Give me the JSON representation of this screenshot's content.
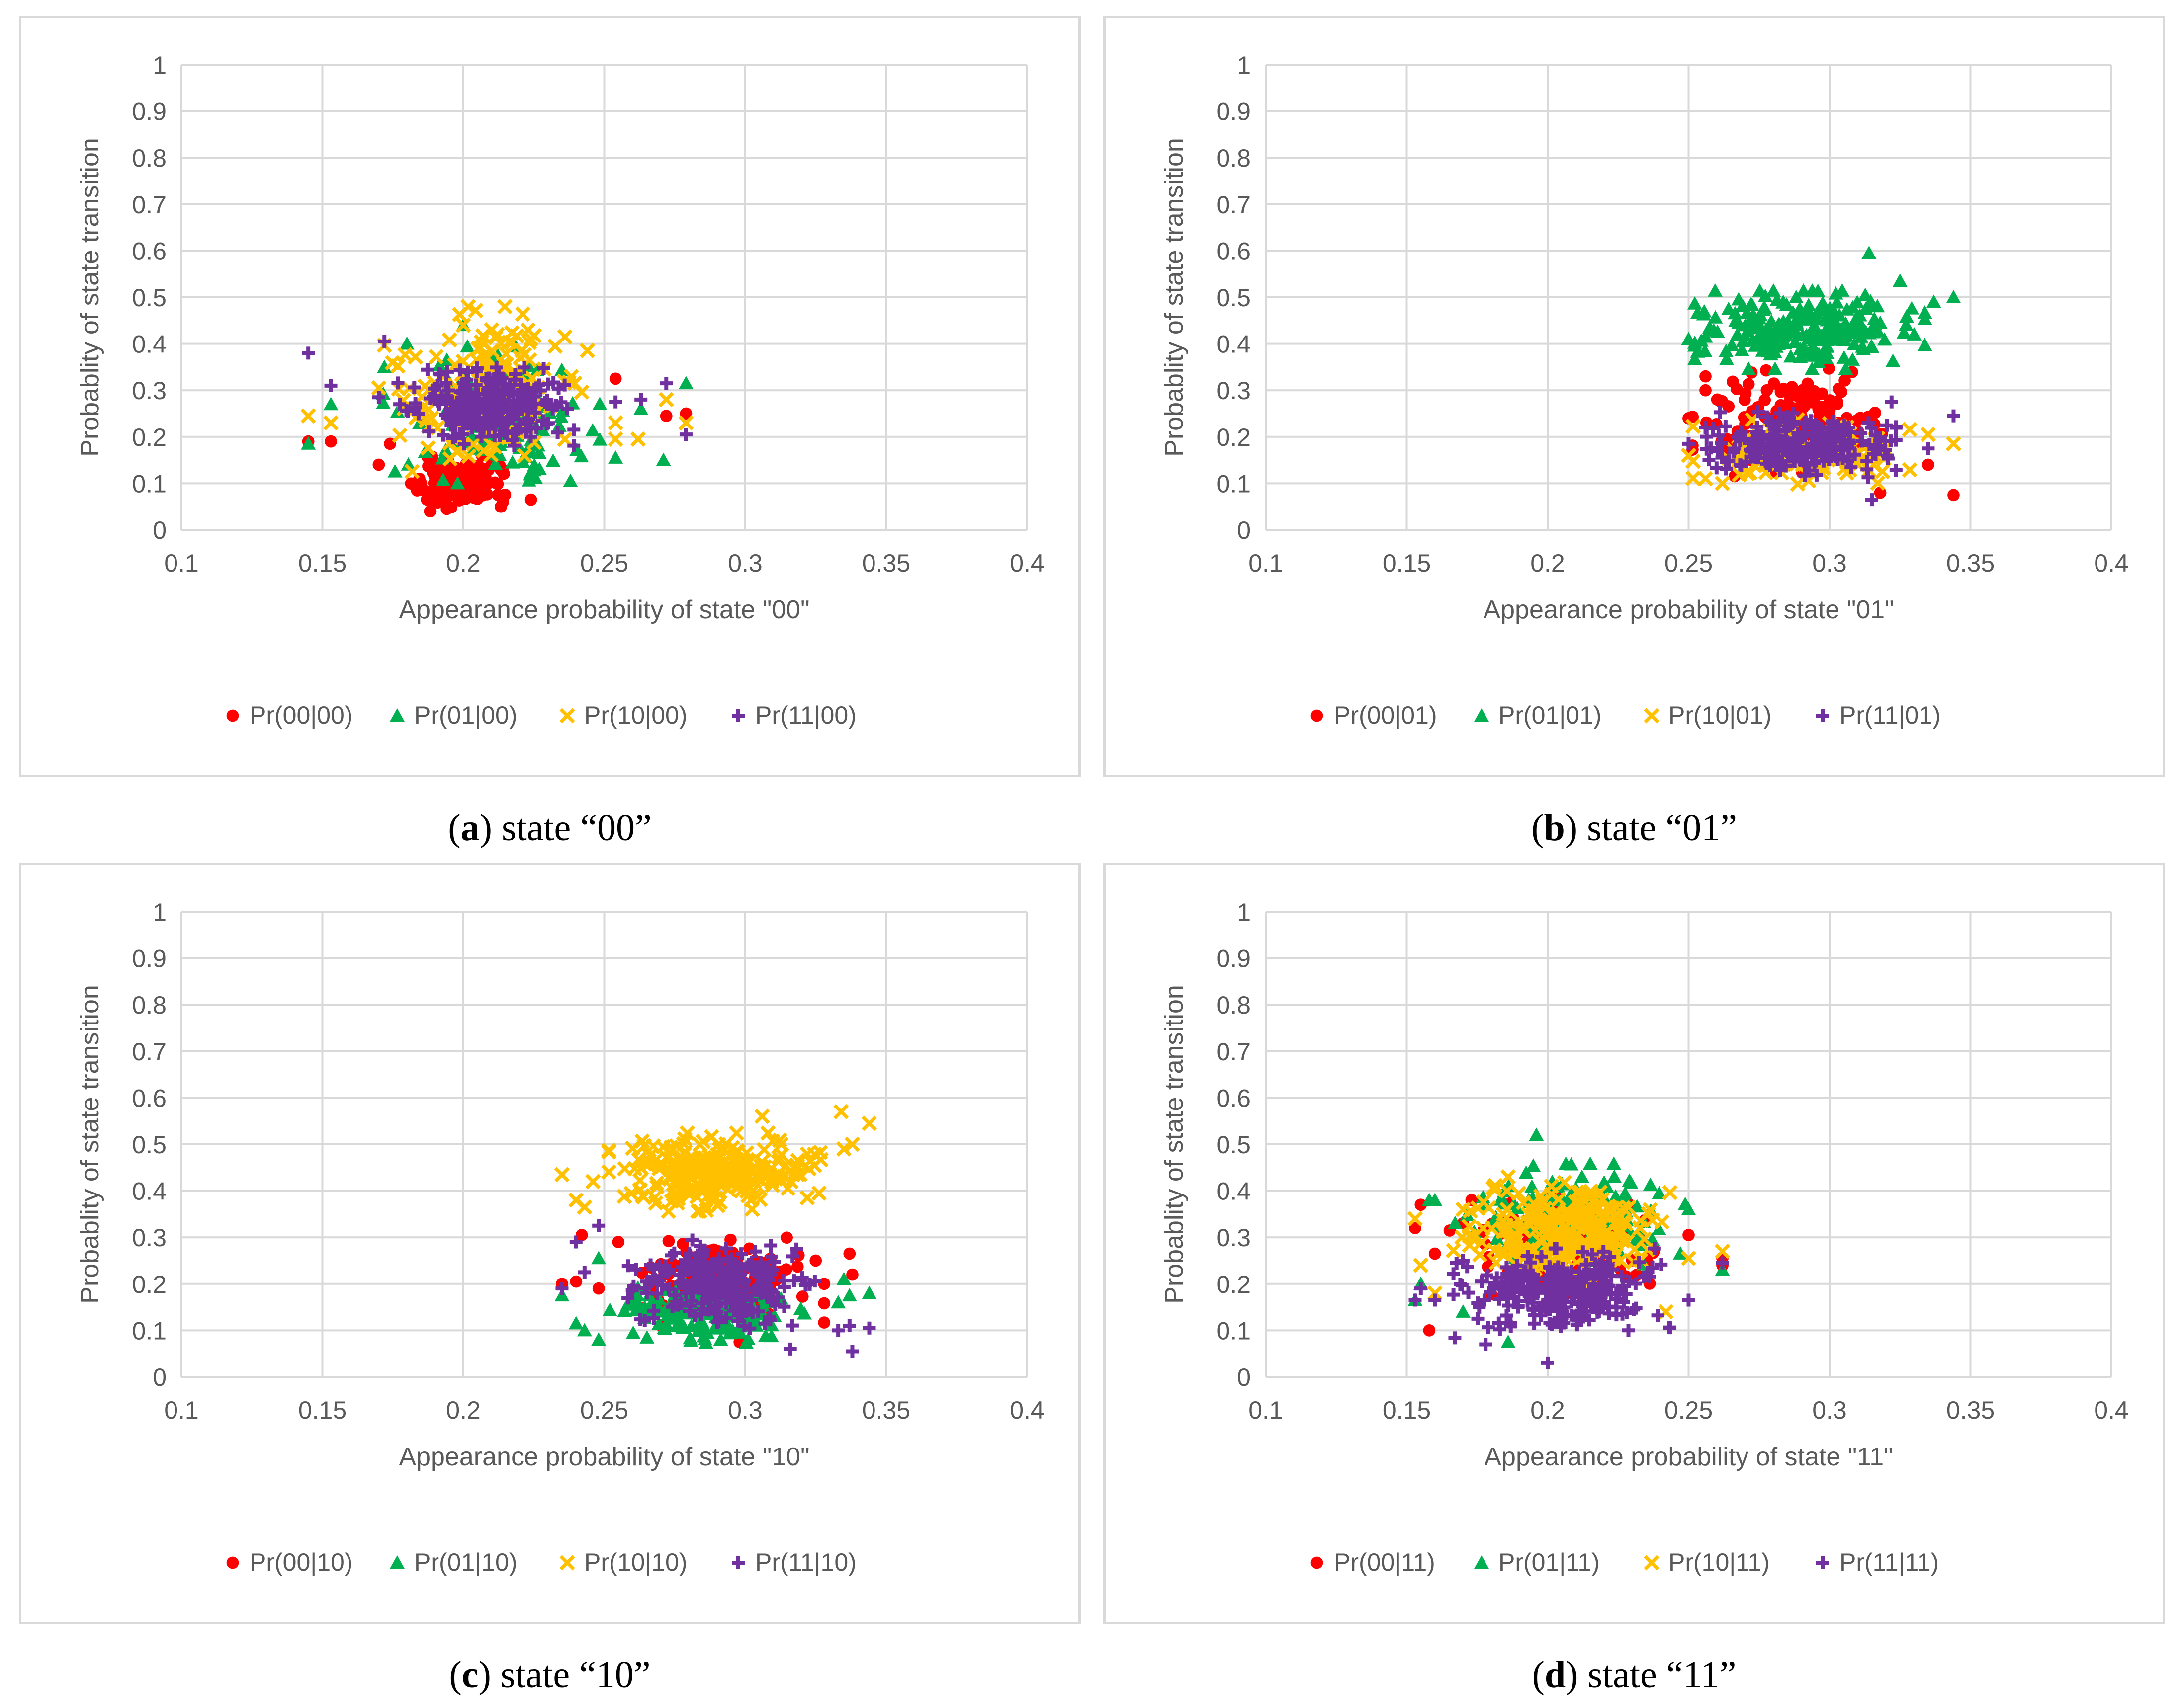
{
  "chart_data": [
    {
      "type": "scatter",
      "caption": {
        "letter": "a",
        "text": "state “00”"
      },
      "xlabel": "Appearance probability of state \"00\"",
      "ylabel": "Probablity of state transition",
      "xlim": [
        0.1,
        0.4
      ],
      "ylim": [
        0,
        1
      ],
      "xticks": [
        "0.1",
        "0.15",
        "0.2",
        "0.25",
        "0.3",
        "0.35",
        "0.4"
      ],
      "yticks": [
        "0",
        "0.1",
        "0.2",
        "0.3",
        "0.4",
        "0.5",
        "0.6",
        "0.7",
        "0.8",
        "0.9",
        "1"
      ],
      "grid": true,
      "legend": "bottom",
      "series": [
        {
          "name": "Pr(00|00)",
          "marker": "circle",
          "color": "#ff0000",
          "cluster": {
            "cx": 0.198,
            "cy": 0.1,
            "sx": 0.007,
            "sy": 0.025,
            "n": 120,
            "seed": 11
          },
          "outliers": [
            [
              0.145,
              0.19
            ],
            [
              0.153,
              0.19
            ],
            [
              0.17,
              0.14
            ],
            [
              0.254,
              0.325
            ],
            [
              0.272,
              0.245
            ],
            [
              0.279,
              0.25
            ],
            [
              0.224,
              0.065
            ],
            [
              0.214,
              0.06
            ],
            [
              0.185,
              0.1
            ],
            [
              0.174,
              0.185
            ]
          ]
        },
        {
          "name": "Pr(01|00)",
          "marker": "triangle",
          "color": "#00b050",
          "cluster": {
            "cx": 0.21,
            "cy": 0.25,
            "sx": 0.016,
            "sy": 0.06,
            "n": 140,
            "seed": 22
          },
          "outliers": [
            [
              0.145,
              0.185
            ],
            [
              0.153,
              0.27
            ],
            [
              0.172,
              0.35
            ],
            [
              0.18,
              0.4
            ],
            [
              0.254,
              0.155
            ],
            [
              0.263,
              0.26
            ],
            [
              0.271,
              0.15
            ],
            [
              0.279,
              0.315
            ],
            [
              0.198,
              0.1
            ],
            [
              0.238,
              0.105
            ],
            [
              0.2,
              0.44
            ]
          ]
        },
        {
          "name": "Pr(10|00)",
          "marker": "x",
          "color": "#ffc000",
          "cluster": {
            "cx": 0.208,
            "cy": 0.3,
            "sx": 0.015,
            "sy": 0.075,
            "n": 180,
            "seed": 33
          },
          "outliers": [
            [
              0.145,
              0.245
            ],
            [
              0.153,
              0.23
            ],
            [
              0.17,
              0.305
            ],
            [
              0.236,
              0.415
            ],
            [
              0.254,
              0.195
            ],
            [
              0.254,
              0.23
            ],
            [
              0.262,
              0.195
            ],
            [
              0.272,
              0.28
            ],
            [
              0.279,
              0.23
            ],
            [
              0.2,
              0.44
            ],
            [
              0.21,
              0.43
            ]
          ]
        },
        {
          "name": "Pr(11|00)",
          "marker": "plus",
          "color": "#7030a0",
          "cluster": {
            "cx": 0.208,
            "cy": 0.265,
            "sx": 0.013,
            "sy": 0.035,
            "n": 240,
            "seed": 44
          },
          "outliers": [
            [
              0.145,
              0.38
            ],
            [
              0.153,
              0.31
            ],
            [
              0.172,
              0.405
            ],
            [
              0.254,
              0.275
            ],
            [
              0.263,
              0.28
            ],
            [
              0.272,
              0.315
            ],
            [
              0.279,
              0.205
            ],
            [
              0.17,
              0.285
            ]
          ]
        }
      ]
    },
    {
      "type": "scatter",
      "caption": {
        "letter": "b",
        "text": "state “01”"
      },
      "xlabel": "Appearance probability of state \"01\"",
      "ylabel": "Probablity of state transition",
      "xlim": [
        0.1,
        0.4
      ],
      "ylim": [
        0,
        1
      ],
      "xticks": [
        "0.1",
        "0.15",
        "0.2",
        "0.25",
        "0.3",
        "0.35",
        "0.4"
      ],
      "yticks": [
        "0",
        "0.1",
        "0.2",
        "0.3",
        "0.4",
        "0.5",
        "0.6",
        "0.7",
        "0.8",
        "0.9",
        "1"
      ],
      "grid": true,
      "legend": "bottom",
      "series": [
        {
          "name": "Pr(00|01)",
          "marker": "circle",
          "color": "#ff0000",
          "cluster": {
            "cx": 0.285,
            "cy": 0.235,
            "sx": 0.014,
            "sy": 0.05,
            "n": 160,
            "seed": 55
          },
          "outliers": [
            [
              0.25,
              0.24
            ],
            [
              0.256,
              0.33
            ],
            [
              0.256,
              0.3
            ],
            [
              0.344,
              0.075
            ],
            [
              0.335,
              0.14
            ],
            [
              0.318,
              0.08
            ]
          ]
        },
        {
          "name": "Pr(01|01)",
          "marker": "triangle",
          "color": "#00b050",
          "cluster": {
            "cx": 0.293,
            "cy": 0.43,
            "sx": 0.017,
            "sy": 0.035,
            "n": 240,
            "seed": 66
          },
          "outliers": [
            [
              0.25,
              0.41
            ],
            [
              0.256,
              0.415
            ],
            [
              0.344,
              0.5
            ],
            [
              0.337,
              0.49
            ],
            [
              0.33,
              0.42
            ],
            [
              0.314,
              0.595
            ],
            [
              0.325,
              0.535
            ]
          ]
        },
        {
          "name": "Pr(10|01)",
          "marker": "x",
          "color": "#ffc000",
          "cluster": {
            "cx": 0.29,
            "cy": 0.165,
            "sx": 0.016,
            "sy": 0.03,
            "n": 150,
            "seed": 77
          },
          "outliers": [
            [
              0.25,
              0.16
            ],
            [
              0.256,
              0.11
            ],
            [
              0.344,
              0.185
            ],
            [
              0.335,
              0.205
            ],
            [
              0.262,
              0.1
            ]
          ]
        },
        {
          "name": "Pr(11|01)",
          "marker": "plus",
          "color": "#7030a0",
          "cluster": {
            "cx": 0.29,
            "cy": 0.185,
            "sx": 0.014,
            "sy": 0.03,
            "n": 260,
            "seed": 88
          },
          "outliers": [
            [
              0.25,
              0.185
            ],
            [
              0.256,
              0.22
            ],
            [
              0.344,
              0.245
            ],
            [
              0.335,
              0.175
            ],
            [
              0.315,
              0.065
            ],
            [
              0.322,
              0.275
            ]
          ]
        }
      ]
    },
    {
      "type": "scatter",
      "caption": {
        "letter": "c",
        "text": "state “10”"
      },
      "xlabel": "Appearance probability of state \"10\"",
      "ylabel": "Probablity of state transition",
      "xlim": [
        0.1,
        0.4
      ],
      "ylim": [
        0,
        1
      ],
      "xticks": [
        "0.1",
        "0.15",
        "0.2",
        "0.25",
        "0.3",
        "0.35",
        "0.4"
      ],
      "yticks": [
        "0",
        "0.1",
        "0.2",
        "0.3",
        "0.4",
        "0.5",
        "0.6",
        "0.7",
        "0.8",
        "0.9",
        "1"
      ],
      "grid": true,
      "legend": "bottom",
      "series": [
        {
          "name": "Pr(00|10)",
          "marker": "circle",
          "color": "#ff0000",
          "cluster": {
            "cx": 0.292,
            "cy": 0.205,
            "sx": 0.015,
            "sy": 0.04,
            "n": 140,
            "seed": 99
          },
          "outliers": [
            [
              0.235,
              0.2
            ],
            [
              0.24,
              0.205
            ],
            [
              0.242,
              0.305
            ],
            [
              0.248,
              0.19
            ],
            [
              0.337,
              0.265
            ],
            [
              0.338,
              0.22
            ],
            [
              0.325,
              0.25
            ],
            [
              0.298,
              0.075
            ],
            [
              0.255,
              0.29
            ]
          ]
        },
        {
          "name": "Pr(01|10)",
          "marker": "triangle",
          "color": "#00b050",
          "cluster": {
            "cx": 0.285,
            "cy": 0.145,
            "sx": 0.015,
            "sy": 0.03,
            "n": 170,
            "seed": 111
          },
          "outliers": [
            [
              0.235,
              0.175
            ],
            [
              0.24,
              0.115
            ],
            [
              0.243,
              0.1
            ],
            [
              0.248,
              0.08
            ],
            [
              0.248,
              0.255
            ],
            [
              0.337,
              0.175
            ],
            [
              0.344,
              0.18
            ],
            [
              0.333,
              0.16
            ],
            [
              0.335,
              0.21
            ]
          ]
        },
        {
          "name": "Pr(10|10)",
          "marker": "x",
          "color": "#ffc000",
          "cluster": {
            "cx": 0.29,
            "cy": 0.44,
            "sx": 0.016,
            "sy": 0.035,
            "n": 260,
            "seed": 122
          },
          "outliers": [
            [
              0.235,
              0.435
            ],
            [
              0.24,
              0.38
            ],
            [
              0.243,
              0.365
            ],
            [
              0.246,
              0.42
            ],
            [
              0.334,
              0.57
            ],
            [
              0.338,
              0.5
            ],
            [
              0.344,
              0.545
            ],
            [
              0.335,
              0.49
            ],
            [
              0.306,
              0.56
            ],
            [
              0.322,
              0.385
            ]
          ]
        },
        {
          "name": "Pr(11|10)",
          "marker": "plus",
          "color": "#7030a0",
          "cluster": {
            "cx": 0.292,
            "cy": 0.2,
            "sx": 0.014,
            "sy": 0.04,
            "n": 270,
            "seed": 133
          },
          "outliers": [
            [
              0.235,
              0.19
            ],
            [
              0.24,
              0.29
            ],
            [
              0.243,
              0.225
            ],
            [
              0.248,
              0.325
            ],
            [
              0.337,
              0.11
            ],
            [
              0.338,
              0.055
            ],
            [
              0.344,
              0.105
            ],
            [
              0.333,
              0.1
            ],
            [
              0.316,
              0.06
            ]
          ]
        }
      ]
    },
    {
      "type": "scatter",
      "caption": {
        "letter": "d",
        "text": "state “11”"
      },
      "xlabel": "Appearance probability of state \"11\"",
      "ylabel": "Probablity of state transition",
      "xlim": [
        0.1,
        0.4
      ],
      "ylim": [
        0,
        1
      ],
      "xticks": [
        "0.1",
        "0.15",
        "0.2",
        "0.25",
        "0.3",
        "0.35",
        "0.4"
      ],
      "yticks": [
        "0",
        "0.1",
        "0.2",
        "0.3",
        "0.4",
        "0.5",
        "0.6",
        "0.7",
        "0.8",
        "0.9",
        "1"
      ],
      "grid": true,
      "legend": "bottom",
      "series": [
        {
          "name": "Pr(00|11)",
          "marker": "circle",
          "color": "#ff0000",
          "cluster": {
            "cx": 0.205,
            "cy": 0.28,
            "sx": 0.017,
            "sy": 0.05,
            "n": 120,
            "seed": 144
          },
          "outliers": [
            [
              0.153,
              0.32
            ],
            [
              0.155,
              0.37
            ],
            [
              0.158,
              0.1
            ],
            [
              0.16,
              0.265
            ],
            [
              0.17,
              0.33
            ],
            [
              0.173,
              0.38
            ],
            [
              0.25,
              0.305
            ],
            [
              0.262,
              0.24
            ],
            [
              0.262,
              0.255
            ]
          ]
        },
        {
          "name": "Pr(01|11)",
          "marker": "triangle",
          "color": "#00b050",
          "cluster": {
            "cx": 0.208,
            "cy": 0.35,
            "sx": 0.017,
            "sy": 0.045,
            "n": 160,
            "seed": 155
          },
          "outliers": [
            [
              0.153,
              0.165
            ],
            [
              0.155,
              0.2
            ],
            [
              0.158,
              0.38
            ],
            [
              0.16,
              0.38
            ],
            [
              0.25,
              0.36
            ],
            [
              0.262,
              0.23
            ],
            [
              0.196,
              0.52
            ],
            [
              0.186,
              0.075
            ],
            [
              0.17,
              0.14
            ]
          ]
        },
        {
          "name": "Pr(10|11)",
          "marker": "x",
          "color": "#ffc000",
          "cluster": {
            "cx": 0.205,
            "cy": 0.31,
            "sx": 0.016,
            "sy": 0.045,
            "n": 240,
            "seed": 166
          },
          "outliers": [
            [
              0.153,
              0.34
            ],
            [
              0.155,
              0.24
            ],
            [
              0.16,
              0.18
            ],
            [
              0.25,
              0.255
            ],
            [
              0.262,
              0.27
            ],
            [
              0.242,
              0.14
            ],
            [
              0.186,
              0.43
            ],
            [
              0.17,
              0.36
            ]
          ]
        },
        {
          "name": "Pr(11|11)",
          "marker": "plus",
          "color": "#7030a0",
          "cluster": {
            "cx": 0.205,
            "cy": 0.18,
            "sx": 0.016,
            "sy": 0.04,
            "n": 260,
            "seed": 177
          },
          "outliers": [
            [
              0.153,
              0.165
            ],
            [
              0.155,
              0.19
            ],
            [
              0.16,
              0.165
            ],
            [
              0.25,
              0.165
            ],
            [
              0.262,
              0.245
            ],
            [
              0.2,
              0.03
            ],
            [
              0.17,
              0.25
            ],
            [
              0.178,
              0.07
            ]
          ]
        }
      ]
    }
  ]
}
